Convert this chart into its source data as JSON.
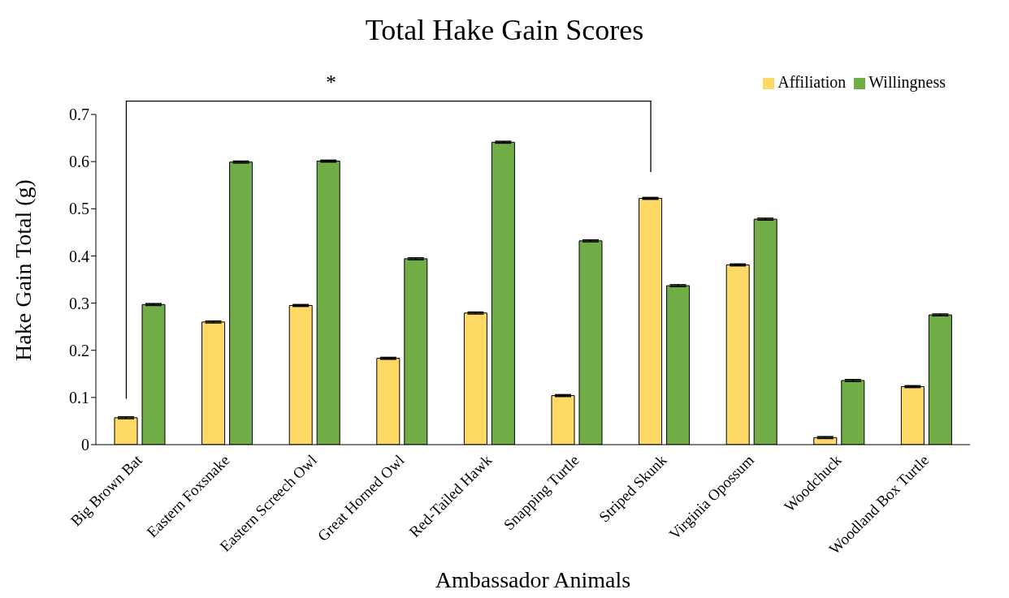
{
  "chart_data": {
    "type": "bar",
    "title": "Total Hake Gain Scores",
    "xlabel": "Ambassador Animals",
    "ylabel": "Hake Gain Total (g)",
    "categories": [
      "Big Brown Bat",
      "Eastern Foxsnake",
      "Eastern Screech Owl",
      "Great Horned Owl",
      "Red-Tailed Hawk",
      "Snapping Turtle",
      "Striped Skunk",
      "Virginia Opossum",
      "Woodchuck",
      "Woodland Box Turtle"
    ],
    "series": [
      {
        "name": "Affiliation",
        "color": "#ffd966",
        "values": [
          0.057,
          0.26,
          0.295,
          0.183,
          0.279,
          0.104,
          0.522,
          0.381,
          0.015,
          0.123
        ],
        "errors": [
          0.002,
          0.002,
          0.002,
          0.002,
          0.002,
          0.002,
          0.002,
          0.002,
          0.002,
          0.002
        ]
      },
      {
        "name": "Willingness",
        "color": "#70ad47",
        "values": [
          0.297,
          0.599,
          0.601,
          0.394,
          0.641,
          0.432,
          0.337,
          0.478,
          0.136,
          0.275
        ],
        "errors": [
          0.002,
          0.002,
          0.002,
          0.002,
          0.002,
          0.002,
          0.002,
          0.002,
          0.002,
          0.002
        ]
      }
    ],
    "ylim": [
      0,
      0.7
    ],
    "yticks": [
      0,
      0.1,
      0.2,
      0.3,
      0.4,
      0.5,
      0.6,
      0.7
    ],
    "grid": false,
    "legend": "top right",
    "annotations": [
      "*"
    ]
  }
}
